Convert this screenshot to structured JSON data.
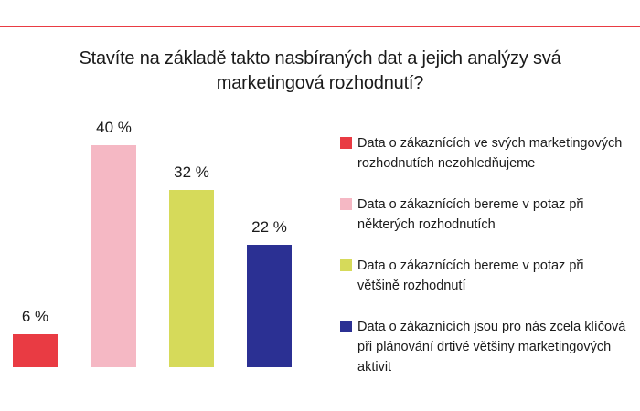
{
  "page": {
    "background": "#ffffff",
    "top_rule_color": "#e93b43",
    "text_color": "#1a1a1a"
  },
  "title": {
    "full": "Stavíte na základě takto nasbíraných dat a jejich analýzy svá marketingová rozhodnutí?",
    "lines": [
      "Stavíte na základě takto nasbíraných dat a jejich analýzy svá",
      "marketingová rozhodnutí?"
    ]
  },
  "chart_data": {
    "type": "bar",
    "title": "Stavíte na základě takto nasbíraných dat a jejich analýzy svá marketingová rozhodnutí?",
    "categories": [
      "Data o zákaznících ve svých marketingových rozhodnutích nezohledňujeme",
      "Data o zákaznících bereme v potaz při některých rozhodnutích",
      "Data o zákaznících bereme v potaz při většině rozhodnutí",
      "Data o zákaznících jsou pro nás zcela klíčová při plánování drtivé většiny marketingových aktivit"
    ],
    "values": [
      6,
      40,
      32,
      22
    ],
    "value_labels": [
      "6 %",
      "40 %",
      "32 %",
      "22 %"
    ],
    "colors": [
      "#e93b43",
      "#f5b8c4",
      "#d6da5a",
      "#2b3093"
    ],
    "unit": "%",
    "ylim": [
      0,
      45
    ],
    "grid": false,
    "axes_shown": false,
    "legend_position": "right",
    "legend": [
      {
        "color": "#e93b43",
        "label": "Data o zákaznících ve svých marketingových rozhodnutích nezohledňujeme",
        "lines": [
          "Data o zákaznících ve svých marketingových",
          "rozhodnutích nezohledňujeme"
        ]
      },
      {
        "color": "#f5b8c4",
        "label": "Data o zákaznících bereme v potaz při některých rozhodnutích",
        "lines": [
          "Data o zákaznících bereme v potaz při",
          "některých rozhodnutích"
        ]
      },
      {
        "color": "#d6da5a",
        "label": "Data o zákaznících bereme v potaz při většině rozhodnutí",
        "lines": [
          "Data o zákaznících bereme v potaz při",
          "většině rozhodnutí"
        ]
      },
      {
        "color": "#2b3093",
        "label": "Data o zákaznících jsou pro nás zcela klíčová při plánování drtivé většiny marketingových aktivit",
        "lines": [
          "Data o zákaznících jsou pro nás zcela klíčová",
          "při plánování drtivé většiny marketingových",
          "aktivit"
        ]
      }
    ]
  }
}
